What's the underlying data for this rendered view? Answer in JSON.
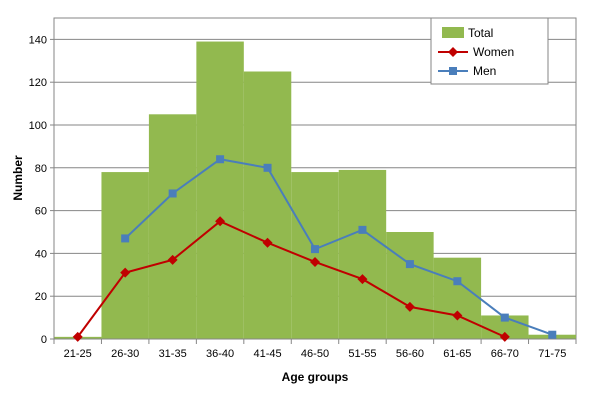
{
  "chart_data": {
    "type": "bar",
    "categories": [
      "21-25",
      "26-30",
      "31-35",
      "36-40",
      "41-45",
      "46-50",
      "51-55",
      "56-60",
      "61-65",
      "66-70",
      "71-75"
    ],
    "series": [
      {
        "name": "Total",
        "type": "bar",
        "color": "#92b94f",
        "values": [
          1,
          78,
          105,
          139,
          125,
          78,
          79,
          50,
          38,
          11,
          2
        ]
      },
      {
        "name": "Women",
        "type": "line",
        "color": "#c00000",
        "marker": "diamond",
        "values": [
          1,
          31,
          37,
          55,
          45,
          36,
          28,
          15,
          11,
          1,
          null
        ]
      },
      {
        "name": "Men",
        "type": "line",
        "color": "#4a7ebb",
        "marker": "square",
        "values": [
          null,
          47,
          68,
          84,
          80,
          42,
          51,
          35,
          27,
          10,
          2
        ]
      }
    ],
    "xlabel": "Age groups",
    "ylabel": "Number",
    "ylim": [
      0,
      150
    ],
    "yticks": [
      0,
      20,
      40,
      60,
      80,
      100,
      120,
      140
    ],
    "grid": true,
    "legend": "top-right"
  }
}
